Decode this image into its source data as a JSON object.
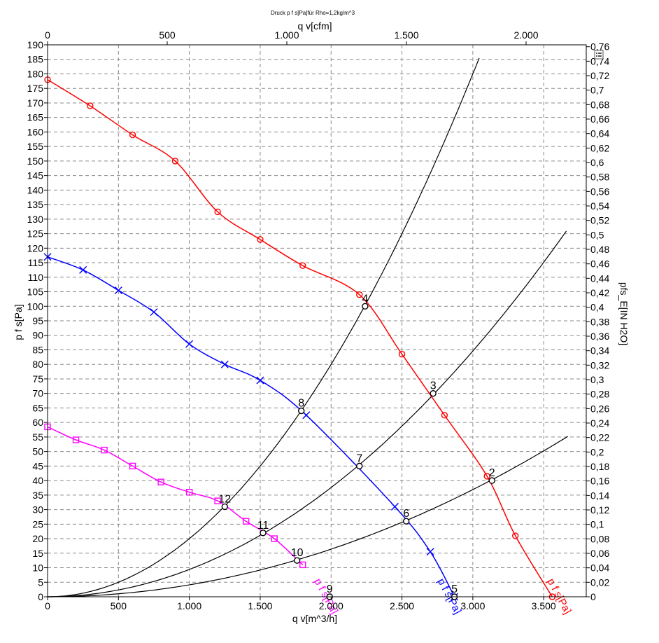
{
  "chart_data": {
    "type": "line",
    "title": "Druck p f s[Pa]für Rho=1,2kg/m^3",
    "xlabel": "q v[m^3/h]",
    "x2label": "q v[cfm]",
    "ylabel": "p f s[Pa]",
    "y2label": "pfs_E[IN H2O]",
    "xlim": [
      0,
      3800
    ],
    "ylim": [
      0,
      190
    ],
    "x_ticks": [
      0,
      500,
      1000,
      1500,
      2000,
      2500,
      3000,
      3500
    ],
    "x_tick_labels": [
      "0",
      "500",
      "1.000",
      "1.500",
      "2.000",
      "2.500",
      "3.000",
      "3.500"
    ],
    "x2_ticks": [
      0,
      500,
      1000,
      1500,
      2000
    ],
    "x2_tick_labels": [
      "0",
      "500",
      "1.000",
      "1.500",
      "2.000"
    ],
    "y_ticks": [
      0,
      5,
      10,
      15,
      20,
      25,
      30,
      35,
      40,
      45,
      50,
      55,
      60,
      65,
      70,
      75,
      80,
      85,
      90,
      95,
      100,
      105,
      110,
      115,
      120,
      125,
      130,
      135,
      140,
      145,
      150,
      155,
      160,
      165,
      170,
      175,
      180,
      185,
      190
    ],
    "y2_ticks": [
      0,
      0.02,
      0.04,
      0.06,
      0.08,
      0.1,
      0.12,
      0.14,
      0.16,
      0.18,
      0.2,
      0.22,
      0.24,
      0.26,
      0.28,
      0.3,
      0.32,
      0.34,
      0.36,
      0.38,
      0.4,
      0.42,
      0.44,
      0.46,
      0.48,
      0.5,
      0.52,
      0.54,
      0.56,
      0.58,
      0.6,
      0.62,
      0.64,
      0.66,
      0.68,
      0.7,
      0.72,
      0.74,
      0.76
    ],
    "y2_tick_labels": [
      "0",
      "0,02",
      "0,04",
      "0,06",
      "0,08",
      "0,1",
      "0,12",
      "0,14",
      "0,16",
      "0,18",
      "0,2",
      "0,22",
      "0,24",
      "0,26",
      "0,28",
      "0,3",
      "0,32",
      "0,34",
      "0,36",
      "0,38",
      "0,4",
      "0,42",
      "0,44",
      "0,46",
      "0,48",
      "0,5",
      "0,52",
      "0,54",
      "0,56",
      "0,58",
      "0,6",
      "0,62",
      "0,64",
      "0,66",
      "0,68",
      "0,7",
      "0,72",
      "0,74",
      "0,76"
    ],
    "grid": true,
    "series": [
      {
        "name": "p f s[Pa]",
        "color": "#ff0000",
        "marker": "circle",
        "x": [
          0,
          300,
          600,
          900,
          1200,
          1500,
          1800,
          2200,
          2500,
          2800,
          3100,
          3300,
          3560
        ],
        "y": [
          178,
          169,
          159,
          150,
          132.5,
          123,
          114,
          104,
          83.5,
          62.5,
          41.5,
          21,
          0
        ]
      },
      {
        "name": "p f s[Pa]",
        "color": "#0000ff",
        "marker": "x",
        "x": [
          0,
          250,
          500,
          750,
          1000,
          1250,
          1500,
          1825,
          2450,
          2700,
          2870
        ],
        "y": [
          117,
          112.5,
          105.5,
          98,
          87,
          80,
          74.5,
          62.5,
          31,
          15.5,
          0
        ]
      },
      {
        "name": "p f s[Pa]",
        "color": "#ff00ff",
        "marker": "square",
        "x": [
          0,
          200,
          400,
          600,
          800,
          1000,
          1200,
          1400,
          1600,
          1800
        ],
        "y": [
          58.5,
          54,
          50.5,
          45,
          39.5,
          36,
          33,
          26,
          20,
          11
        ]
      }
    ],
    "system_curves": [
      {
        "color": "#000000",
        "x_max": 3045,
        "k": 2e-05
      },
      {
        "color": "#000000",
        "x_max": 3660,
        "k": 9.4e-06
      },
      {
        "color": "#000000",
        "x_max": 3670,
        "k": 4.1e-06
      }
    ],
    "operating_points": [
      {
        "label": "2",
        "x": 3135,
        "y": 40
      },
      {
        "label": "3",
        "x": 2720,
        "y": 70
      },
      {
        "label": "4",
        "x": 2240,
        "y": 100
      },
      {
        "label": "5",
        "x": 2870,
        "y": 0
      },
      {
        "label": "6",
        "x": 2530,
        "y": 26
      },
      {
        "label": "7",
        "x": 2200,
        "y": 45
      },
      {
        "label": "8",
        "x": 1790,
        "y": 64
      },
      {
        "label": "9",
        "x": 1990,
        "y": 0
      },
      {
        "label": "10",
        "x": 1760,
        "y": 12.5
      },
      {
        "label": "11",
        "x": 1520,
        "y": 22
      },
      {
        "label": "12",
        "x": 1250,
        "y": 31
      }
    ]
  }
}
